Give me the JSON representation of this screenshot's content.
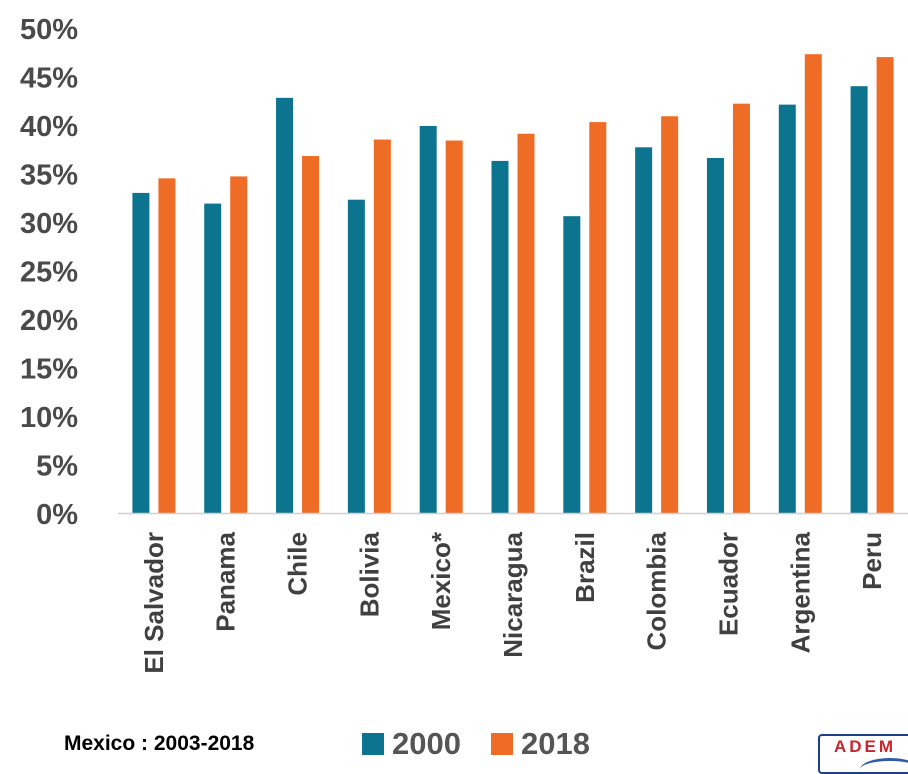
{
  "chart_data": {
    "type": "bar",
    "title": "",
    "xlabel": "",
    "ylabel": "",
    "ylim": [
      0,
      50
    ],
    "yticks": [
      "0%",
      "5%",
      "10%",
      "15%",
      "20%",
      "25%",
      "30%",
      "35%",
      "40%",
      "45%",
      "50%"
    ],
    "categories": [
      "El Salvador",
      "Panama",
      "Chile",
      "Bolivia",
      "Mexico*",
      "Nicaragua",
      "Brazil",
      "Colombia",
      "Ecuador",
      "Argentina",
      "Peru"
    ],
    "series": [
      {
        "name": "2000",
        "color": "#0d7490",
        "values": [
          33.0,
          31.9,
          42.8,
          32.3,
          39.9,
          36.3,
          30.6,
          37.7,
          36.6,
          42.1,
          44.0
        ]
      },
      {
        "name": "2018",
        "color": "#ef6c26",
        "values": [
          34.5,
          34.7,
          36.8,
          38.5,
          38.4,
          39.1,
          40.3,
          40.9,
          42.2,
          47.3,
          47.0
        ]
      }
    ],
    "grid": false,
    "legend_position": "bottom"
  },
  "footnote": "Mexico : 2003-2018",
  "logo_text": "ADEM"
}
